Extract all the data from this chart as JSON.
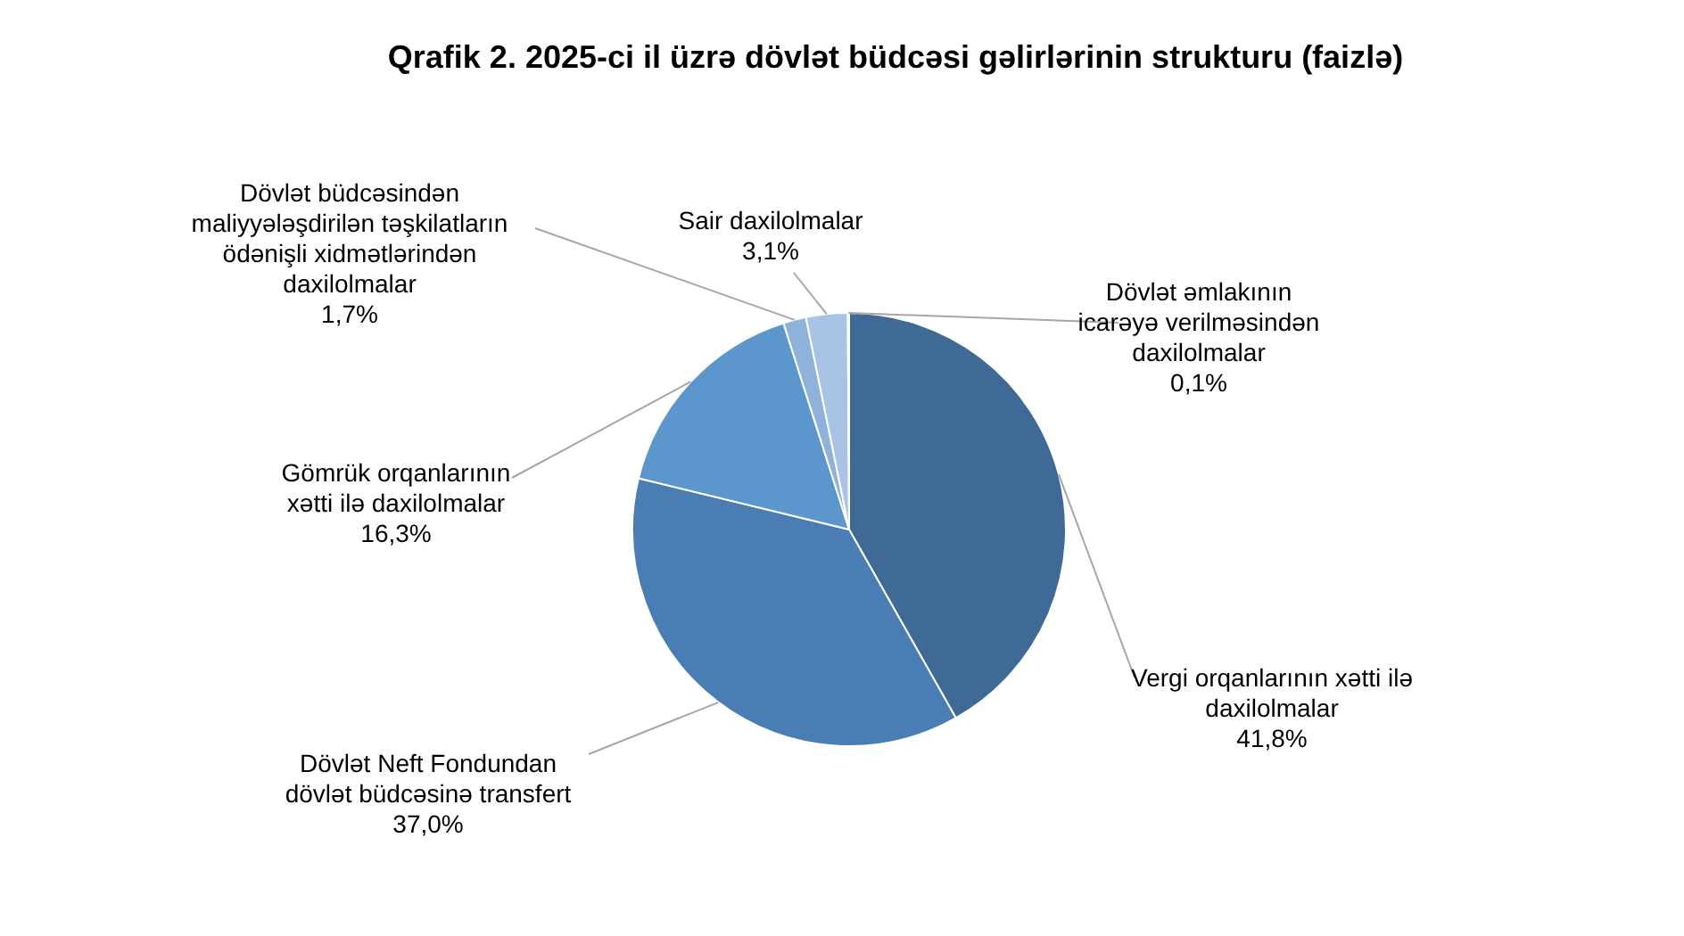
{
  "chart_data": {
    "type": "pie",
    "title": "Qrafik 2. 2025-ci il üzrə dövlət büdcəsi gəlirlərinin strukturu (faizlə)",
    "categories": [
      "Vergi orqanlarının xətti ilə daxilolmalar",
      "Dövlət Neft Fondundan dövlət büdcəsinə transfert",
      "Gömrük orqanlarının xətti ilə daxilolmalar",
      "Dövlət büdcəsindən maliyyələşdirilən təşkilatların ödənişli xidmətlərindən daxilolmalar",
      "Sair daxilolmalar",
      "Dövlət əmlakının icarəyə verilməsindən daxilolmalar"
    ],
    "values": [
      41.8,
      37.0,
      16.3,
      1.7,
      3.1,
      0.1
    ],
    "value_labels": [
      "41,8%",
      "37,0%",
      "16,3%",
      "1,7%",
      "3,1%",
      "0,1%"
    ],
    "colors": [
      "#3e6a95",
      "#4a7db3",
      "#5b97cc",
      "#8fb2da",
      "#a9c3e4",
      "#c6d8ee"
    ],
    "legend": false
  }
}
